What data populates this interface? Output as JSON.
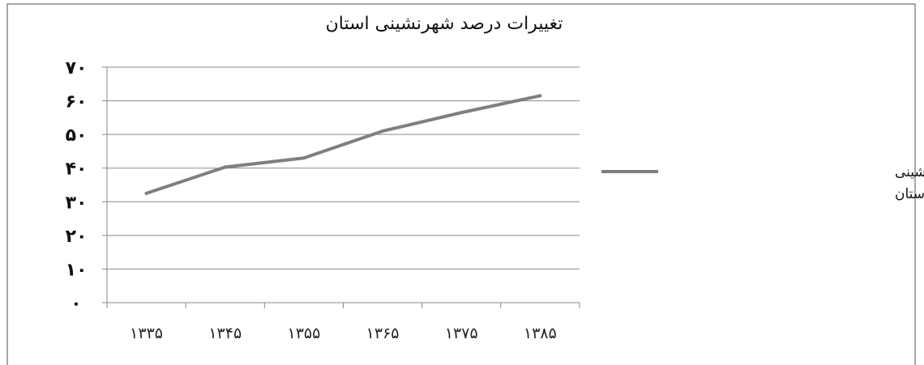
{
  "chart_data": {
    "type": "line",
    "title": "تغییرات درصد شهرنشینی استان",
    "xlabel": "",
    "ylabel": "",
    "categories": [
      "۱۳۳۵",
      "۱۳۴۵",
      "۱۳۵۵",
      "۱۳۶۵",
      "۱۳۷۵",
      "۱۳۸۵"
    ],
    "y_tick_labels": [
      "۰",
      "۱۰",
      "۲۰",
      "۳۰",
      "۴۰",
      "۵۰",
      "۶۰",
      "۷۰"
    ],
    "ylim": [
      0,
      70
    ],
    "grid": true,
    "legend_position": "right",
    "series": [
      {
        "name": "تغییرات درصد شهرنشینی استان",
        "legend_lines": [
          "تغییرات درصد شهرنشینی",
          "استان"
        ],
        "values": [
          32.5,
          40.3,
          43,
          51,
          56.5,
          61.5
        ],
        "color": "#7f7f7f"
      }
    ]
  }
}
